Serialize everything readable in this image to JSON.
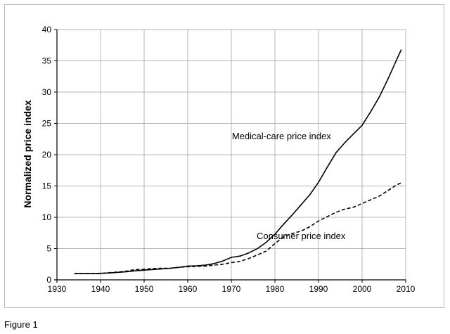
{
  "caption": "Figure 1",
  "chart_data": {
    "type": "line",
    "title": "",
    "xlabel": "",
    "ylabel": "Normalized price index",
    "xlim": [
      1930,
      2010
    ],
    "ylim": [
      0,
      40
    ],
    "xticks": [
      1930,
      1940,
      1950,
      1960,
      1970,
      1980,
      1990,
      2000,
      2010
    ],
    "yticks": [
      0,
      5,
      10,
      15,
      20,
      25,
      30,
      35,
      40
    ],
    "grid": true,
    "legend": "none",
    "series": [
      {
        "name": "Medical-care price index",
        "color": "#000000",
        "style": "solid",
        "x": [
          1934,
          1936,
          1938,
          1940,
          1942,
          1944,
          1946,
          1948,
          1950,
          1952,
          1954,
          1956,
          1958,
          1960,
          1962,
          1964,
          1966,
          1968,
          1970,
          1972,
          1974,
          1976,
          1978,
          1980,
          1982,
          1984,
          1986,
          1988,
          1990,
          1992,
          1994,
          1996,
          1998,
          2000,
          2002,
          2004,
          2006,
          2008,
          2009
        ],
        "y": [
          1.0,
          1.0,
          1.0,
          1.05,
          1.1,
          1.2,
          1.3,
          1.45,
          1.55,
          1.65,
          1.75,
          1.85,
          2.0,
          2.2,
          2.25,
          2.35,
          2.6,
          3.0,
          3.6,
          3.8,
          4.3,
          5.0,
          6.0,
          7.3,
          8.9,
          10.4,
          12.0,
          13.6,
          15.6,
          18.0,
          20.3,
          21.9,
          23.3,
          24.7,
          26.9,
          29.3,
          32.2,
          35.3,
          36.8
        ]
      },
      {
        "name": "Consumer price index",
        "color": "#000000",
        "style": "dashed",
        "x": [
          1934,
          1936,
          1938,
          1940,
          1942,
          1944,
          1946,
          1948,
          1950,
          1952,
          1954,
          1956,
          1958,
          1960,
          1962,
          1964,
          1966,
          1968,
          1970,
          1972,
          1974,
          1976,
          1978,
          1980,
          1982,
          1984,
          1986,
          1988,
          1990,
          1992,
          1994,
          1996,
          1998,
          2000,
          2002,
          2004,
          2006,
          2008,
          2009
        ],
        "y": [
          1.0,
          1.0,
          1.02,
          1.0,
          1.15,
          1.25,
          1.4,
          1.65,
          1.7,
          1.8,
          1.85,
          1.85,
          2.0,
          2.1,
          2.15,
          2.2,
          2.35,
          2.5,
          2.75,
          2.95,
          3.4,
          4.0,
          4.6,
          5.8,
          6.9,
          7.4,
          7.8,
          8.5,
          9.4,
          10.1,
          10.8,
          11.3,
          11.6,
          12.2,
          12.8,
          13.4,
          14.3,
          15.2,
          15.5
        ]
      }
    ],
    "annotations": [
      {
        "text": "Medical-care price index",
        "x": 1981.5,
        "y": 22.5
      },
      {
        "text": "Consumer price index",
        "x": 1986,
        "y": 6.5
      }
    ]
  }
}
